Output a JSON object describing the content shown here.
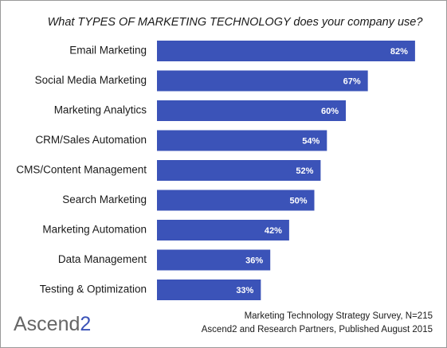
{
  "chart_data": {
    "type": "bar",
    "orientation": "horizontal",
    "title": "What TYPES OF MARKETING TECHNOLOGY does your company use?",
    "categories": [
      "Email Marketing",
      "Social Media Marketing",
      "Marketing Analytics",
      "CRM/Sales Automation",
      "CMS/Content Management",
      "Search Marketing",
      "Marketing Automation",
      "Data Management",
      "Testing & Optimization"
    ],
    "values": [
      82,
      67,
      60,
      54,
      52,
      50,
      42,
      36,
      33
    ],
    "value_labels": [
      "82%",
      "67%",
      "60%",
      "54%",
      "52%",
      "50%",
      "42%",
      "36%",
      "33%"
    ],
    "color": "#3b53b8",
    "source": [
      "Marketing Technology Strategy Survey, N=215",
      "Ascend2 and Research Partners, Published August 2015"
    ],
    "logo": [
      "Ascend",
      "2"
    ]
  }
}
